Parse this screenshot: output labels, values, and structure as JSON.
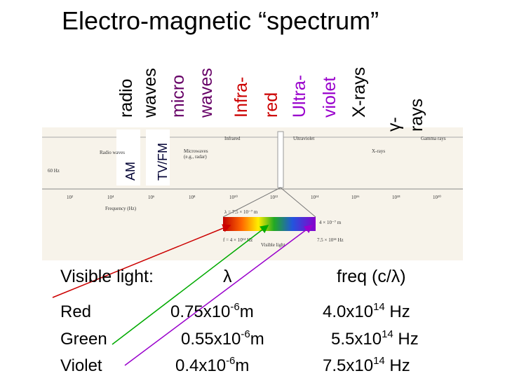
{
  "title": "Electro-magnetic “spectrum”",
  "bands": [
    {
      "lines": [
        "radio",
        "waves"
      ],
      "color": "#000000"
    },
    {
      "lines": [
        "micro",
        "waves"
      ],
      "color": "#660066"
    },
    {
      "lines": [
        "Infra-",
        "red"
      ],
      "color": "#cc0000"
    },
    {
      "lines": [
        "Ultra-",
        "violet"
      ],
      "color": "#9900cc"
    },
    {
      "lines": [
        "X-rays"
      ],
      "color": "#000000"
    },
    {
      "lines": [
        "γ-",
        "rays"
      ],
      "color": "#000000"
    }
  ],
  "sub_bands": [
    "AM",
    "TV/FM"
  ],
  "figure": {
    "region_labels": [
      "Radio waves",
      "Microwaves",
      "(e.g., radar)",
      "Infrared",
      "Ultraviolet",
      "X-rays",
      "Gamma rays"
    ],
    "left_note": "60 Hz",
    "axis_label": "Frequency (Hz)",
    "visible_label": "Visible light",
    "lambda_top": "λ = 7.5 × 10⁻⁷ m",
    "lambda_right": "4 × 10⁻⁷ m",
    "freq_left": "f = 4 × 10¹⁴ Hz",
    "freq_right": "7.5 × 10¹⁴ Hz",
    "ticks": [
      "10²",
      "10⁴",
      "10⁶",
      "10⁸",
      "10¹⁰",
      "10¹²",
      "10¹⁴",
      "10¹⁶",
      "10¹⁸",
      "10²⁰"
    ]
  },
  "visible": {
    "heading": "Visible light:",
    "lambda": "λ",
    "freq_heading": "freq (c/λ)",
    "rows": [
      {
        "name": "Red",
        "wl": "0.75x10",
        "wl_exp": "-6",
        "wl_unit": "m",
        "f": "4.0x10",
        "f_exp": "14",
        "f_unit": " Hz"
      },
      {
        "name": "Green",
        "wl": "0.55x10",
        "wl_exp": "-6",
        "wl_unit": "m",
        "f": "5.5x10",
        "f_exp": "14",
        "f_unit": " Hz"
      },
      {
        "name": "Violet",
        "wl": "0.4x10",
        "wl_exp": "-6",
        "wl_unit": "m",
        "f": "7.5x10",
        "f_exp": "14",
        "f_unit": " Hz"
      }
    ]
  }
}
